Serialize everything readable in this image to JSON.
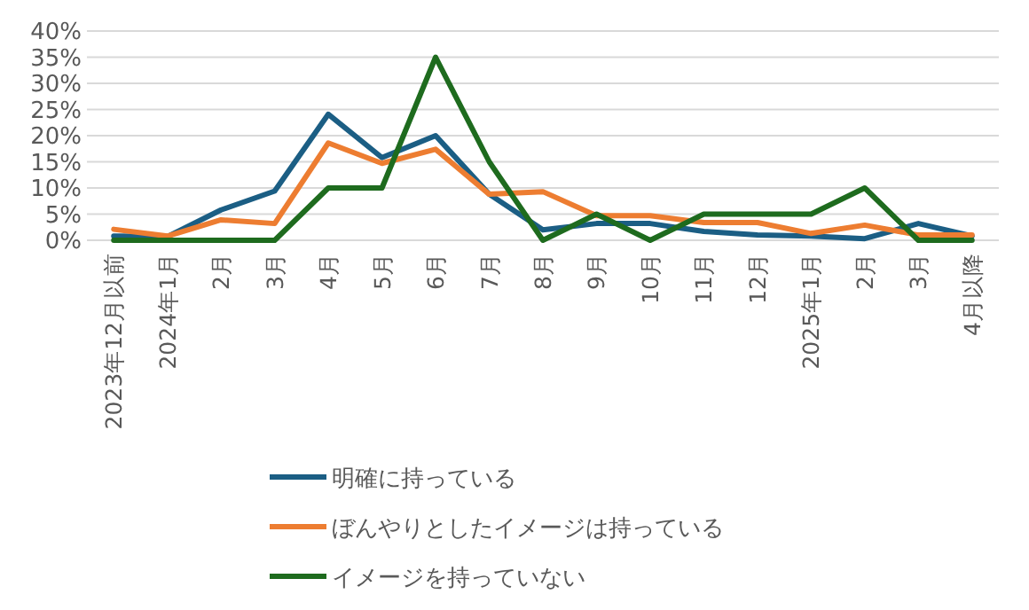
{
  "chart_data": {
    "type": "line",
    "categories": [
      "2023年12月以前",
      "2024年1月",
      "2月",
      "3月",
      "4月",
      "5月",
      "6月",
      "7月",
      "8月",
      "9月",
      "10月",
      "11月",
      "12月",
      "2025年1月",
      "2月",
      "3月",
      "4月以降"
    ],
    "series": [
      {
        "name": "明確に持っている",
        "color": "#1b5e84",
        "values": [
          0.8,
          0.7,
          5.8,
          9.4,
          24.1,
          15.8,
          20,
          8.8,
          2,
          3.2,
          3.2,
          1.7,
          1,
          0.8,
          0.3,
          3.2,
          0.8
        ]
      },
      {
        "name": "ぼんやりとしたイメージは持っている",
        "color": "#ed7d31",
        "values": [
          2.1,
          0.8,
          3.9,
          3.2,
          18.6,
          14.7,
          17.4,
          8.8,
          9.3,
          4.7,
          4.7,
          3.4,
          3.4,
          1.3,
          2.9,
          1,
          1
        ]
      },
      {
        "name": "イメージを持っていない",
        "color": "#1e6b1e",
        "values": [
          0,
          0,
          0,
          0,
          10,
          10,
          35,
          15,
          0,
          5,
          0,
          5,
          5,
          5,
          10,
          0,
          0
        ]
      }
    ],
    "ylim": [
      0,
      40
    ],
    "yticks": [
      {
        "value": 0,
        "label": "0%"
      },
      {
        "value": 5,
        "label": "5%"
      },
      {
        "value": 10,
        "label": "10%"
      },
      {
        "value": 15,
        "label": "15%"
      },
      {
        "value": 20,
        "label": "20%"
      },
      {
        "value": 25,
        "label": "25%"
      },
      {
        "value": 30,
        "label": "30%"
      },
      {
        "value": 35,
        "label": "35%"
      },
      {
        "value": 40,
        "label": "40%"
      }
    ],
    "grid": "y",
    "legend": "bottom",
    "marker": "none",
    "line_style": "solid"
  }
}
